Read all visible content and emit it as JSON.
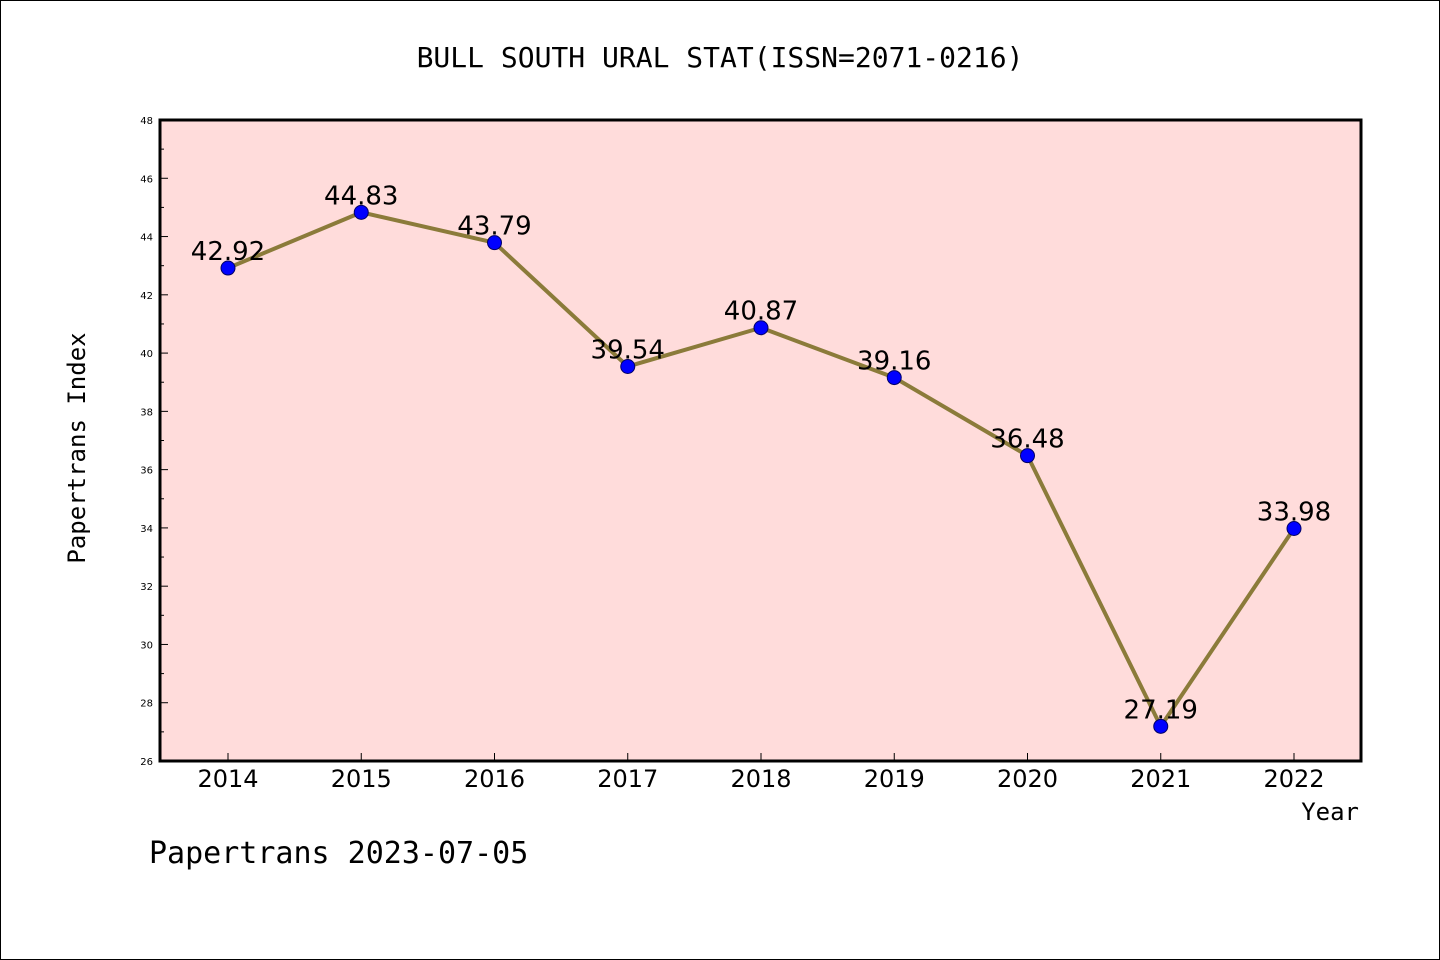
{
  "footer": {
    "text": "Papertrans 2023-07-05"
  },
  "chart_data": {
    "type": "line",
    "title": "BULL SOUTH URAL STAT(ISSN=2071-0216)",
    "xlabel": "Year",
    "ylabel": "Papertrans Index",
    "ylim": [
      26,
      48
    ],
    "y_major_ticks": [
      "26",
      "28",
      "30",
      "32",
      "34",
      "36",
      "38",
      "40",
      "42",
      "44",
      "46",
      "48"
    ],
    "categories": [
      "2014",
      "2015",
      "2016",
      "2017",
      "2018",
      "2019",
      "2020",
      "2021",
      "2022"
    ],
    "series": [
      {
        "values": [
          42.92,
          44.83,
          43.79,
          39.54,
          40.87,
          39.16,
          36.48,
          27.19,
          33.98
        ],
        "labels": [
          "42.92",
          "44.83",
          "43.79",
          "39.54",
          "40.87",
          "39.16",
          "36.48",
          "27.19",
          "33.98"
        ],
        "line_color": "#8B7B3A",
        "marker_color": "#0000FF"
      }
    ],
    "plot_background": "#FFDCDB",
    "grid": false,
    "legend": "none"
  }
}
